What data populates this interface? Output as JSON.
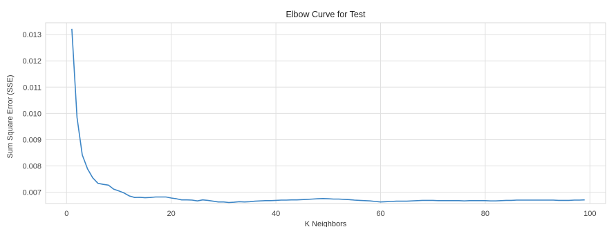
{
  "chart_data": {
    "type": "line",
    "title": "Elbow Curve for Test",
    "xlabel": "K Neighbors",
    "ylabel": "Sum Square Error (SSE)",
    "xlim": [
      -4,
      103
    ],
    "ylim": [
      0.00657,
      0.01345
    ],
    "xticks": [
      0,
      20,
      40,
      60,
      80,
      100
    ],
    "xtick_labels": [
      "0",
      "20",
      "40",
      "60",
      "80",
      "100"
    ],
    "yticks": [
      0.007,
      0.008,
      0.009,
      0.01,
      0.011,
      0.012,
      0.013
    ],
    "ytick_labels": [
      "0.007",
      "0.008",
      "0.009",
      "0.010",
      "0.011",
      "0.012",
      "0.013"
    ],
    "grid": true,
    "series": [
      {
        "color": "#3d86c6",
        "x": [
          1,
          2,
          3,
          4,
          5,
          6,
          7,
          8,
          9,
          10,
          11,
          12,
          13,
          14,
          15,
          16,
          17,
          18,
          19,
          20,
          21,
          22,
          23,
          24,
          25,
          26,
          27,
          28,
          29,
          30,
          31,
          32,
          33,
          34,
          35,
          36,
          37,
          38,
          39,
          40,
          41,
          42,
          43,
          44,
          45,
          46,
          47,
          48,
          49,
          50,
          51,
          52,
          53,
          54,
          55,
          56,
          57,
          58,
          59,
          60,
          61,
          62,
          63,
          64,
          65,
          66,
          67,
          68,
          69,
          70,
          71,
          72,
          73,
          74,
          75,
          76,
          77,
          78,
          79,
          80,
          81,
          82,
          83,
          84,
          85,
          86,
          87,
          88,
          89,
          90,
          91,
          92,
          93,
          94,
          95,
          96,
          97,
          98,
          99
        ],
        "y": [
          0.01322,
          0.00985,
          0.00842,
          0.00789,
          0.00755,
          0.00734,
          0.0073,
          0.00727,
          0.00712,
          0.00705,
          0.00697,
          0.00686,
          0.0068,
          0.00681,
          0.00679,
          0.0068,
          0.00682,
          0.00682,
          0.00682,
          0.00678,
          0.00675,
          0.00671,
          0.00671,
          0.0067,
          0.00667,
          0.00671,
          0.00669,
          0.00666,
          0.00663,
          0.00663,
          0.00661,
          0.00662,
          0.00664,
          0.00663,
          0.00664,
          0.00666,
          0.00667,
          0.00668,
          0.00668,
          0.00669,
          0.0067,
          0.0067,
          0.00671,
          0.00671,
          0.00672,
          0.00673,
          0.00674,
          0.00675,
          0.00676,
          0.00675,
          0.00674,
          0.00674,
          0.00673,
          0.00672,
          0.0067,
          0.00669,
          0.00668,
          0.00667,
          0.00665,
          0.00663,
          0.00664,
          0.00665,
          0.00666,
          0.00666,
          0.00666,
          0.00667,
          0.00668,
          0.00669,
          0.00669,
          0.00669,
          0.00668,
          0.00668,
          0.00668,
          0.00668,
          0.00668,
          0.00667,
          0.00668,
          0.00668,
          0.00668,
          0.00668,
          0.00667,
          0.00667,
          0.00668,
          0.00669,
          0.00669,
          0.0067,
          0.0067,
          0.0067,
          0.0067,
          0.0067,
          0.0067,
          0.0067,
          0.0067,
          0.00669,
          0.00669,
          0.00669,
          0.0067,
          0.0067,
          0.00671
        ]
      }
    ]
  }
}
